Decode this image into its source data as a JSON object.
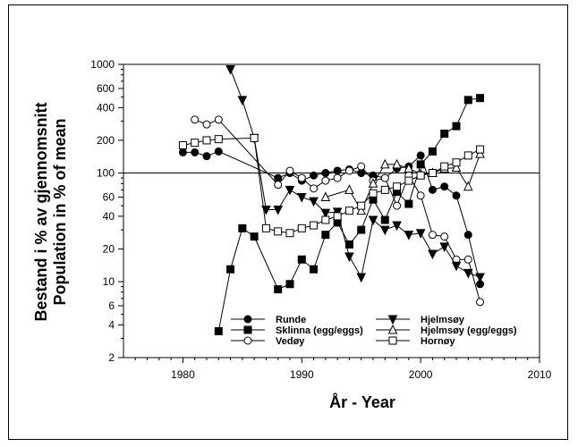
{
  "chart_data": {
    "type": "line",
    "xlabel": "År  -  Year",
    "ylabel_lines": [
      "Bestand i % av gjennomsnitt",
      "Population in % of mean"
    ],
    "xlim": [
      1975,
      2010
    ],
    "ylim": [
      2,
      1000
    ],
    "y_scale": "log",
    "x_ticks": [
      1980,
      1990,
      2000,
      2010
    ],
    "y_ticks": [
      2,
      4,
      6,
      10,
      20,
      40,
      60,
      100,
      200,
      400,
      600,
      1000
    ],
    "reference_line": 100,
    "grid": false,
    "legend_position": "bottom-inside",
    "series": [
      {
        "name": "Runde",
        "marker": "circle-filled",
        "x": [
          1980,
          1981,
          1982,
          1983,
          1988,
          1989,
          1990,
          1991,
          1992,
          1993,
          1994,
          1995,
          1996,
          1997,
          1998,
          1999,
          2000,
          2001,
          2002,
          2003,
          2004,
          2005
        ],
        "y": [
          155,
          155,
          143,
          158,
          90,
          100,
          85,
          95,
          100,
          105,
          108,
          100,
          95,
          90,
          110,
          115,
          145,
          70,
          75,
          62,
          27,
          9.5
        ]
      },
      {
        "name": "Sklinna (egg/eggs)",
        "marker": "square-filled",
        "x": [
          1983,
          1984,
          1985,
          1986,
          1988,
          1989,
          1990,
          1991,
          1992,
          1993,
          1994,
          1995,
          1996,
          1997,
          1998,
          1999,
          2000,
          2001,
          2002,
          2003,
          2004,
          2005
        ],
        "y": [
          3.5,
          13,
          31,
          26,
          8.5,
          9.5,
          16,
          13,
          27,
          35,
          22,
          30,
          57,
          37,
          67,
          52,
          120,
          158,
          230,
          270,
          470,
          490
        ]
      },
      {
        "name": "Vedøy",
        "marker": "circle-open",
        "x": [
          1981,
          1982,
          1983,
          1988,
          1989,
          1990,
          1991,
          1992,
          1993,
          1994,
          1995,
          1996,
          1997,
          1998,
          1999,
          2000,
          2001,
          2002,
          2003,
          2004,
          2005
        ],
        "y": [
          310,
          280,
          310,
          78,
          105,
          90,
          72,
          85,
          90,
          105,
          115,
          85,
          90,
          50,
          95,
          62,
          27,
          26,
          16,
          16,
          6.5
        ]
      },
      {
        "name": "Hjelmsøy",
        "marker": "triangle-down-filled",
        "x": [
          1984,
          1985,
          1986,
          1987,
          1988,
          1989,
          1990,
          1991,
          1992,
          1993,
          1994,
          1995,
          1996,
          1997,
          1998,
          1999,
          2000,
          2001,
          2002,
          2003,
          2004,
          2005
        ],
        "y": [
          900,
          470,
          210,
          46,
          46,
          70,
          60,
          55,
          43,
          44,
          17,
          11,
          37,
          30,
          33,
          27,
          28,
          18,
          21,
          14,
          12,
          11
        ]
      },
      {
        "name": "Hjelmsøy (egg/eggs)",
        "marker": "triangle-up-open",
        "x": [
          1992,
          1994,
          1995,
          1996,
          1997,
          1998,
          1999,
          2000,
          2001,
          2002,
          2003,
          2004,
          2005
        ],
        "y": [
          60,
          70,
          45,
          80,
          120,
          120,
          110,
          98,
          100,
          110,
          112,
          75,
          150
        ]
      },
      {
        "name": "Hornøy",
        "marker": "square-open",
        "x": [
          1980,
          1981,
          1982,
          1983,
          1986,
          1987,
          1988,
          1989,
          1990,
          1991,
          1992,
          1993,
          1994,
          1995,
          1996,
          1997,
          1998,
          1999,
          2000,
          2001,
          2002,
          2003,
          2004,
          2005
        ],
        "y": [
          180,
          190,
          200,
          205,
          210,
          31,
          29,
          28,
          31,
          33,
          37,
          40,
          45,
          50,
          65,
          70,
          75,
          85,
          95,
          100,
          115,
          125,
          145,
          165
        ]
      }
    ]
  }
}
